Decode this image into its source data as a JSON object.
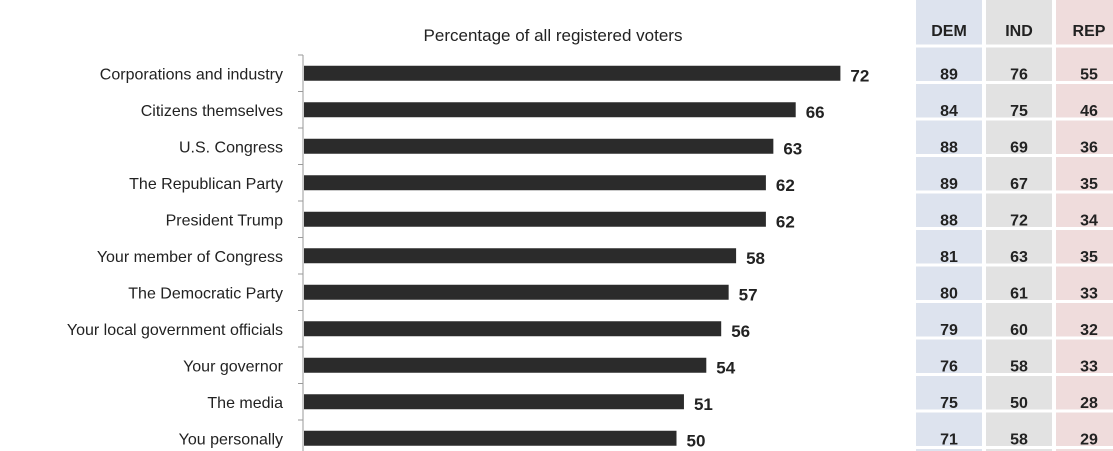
{
  "chart_data": {
    "type": "bar",
    "orientation": "horizontal",
    "title": "Percentage of all registered voters",
    "categories": [
      "Corporations and industry",
      "Citizens themselves",
      "U.S. Congress",
      "The Republican Party",
      "President Trump",
      "Your member of Congress",
      "The Democratic Party",
      "Your local government officials",
      "Your governor",
      "The media",
      "You personally"
    ],
    "values": [
      72,
      66,
      63,
      62,
      62,
      58,
      57,
      56,
      54,
      51,
      50
    ],
    "bar_color": "#2b2b2b",
    "xlim": [
      0,
      100
    ],
    "grid": false,
    "data_labels": true,
    "table": {
      "columns": [
        "DEM",
        "IND",
        "REP"
      ],
      "column_colors": [
        "#dde3ee",
        "#e2e2e2",
        "#efdcdc"
      ],
      "rows": [
        [
          89,
          76,
          55
        ],
        [
          84,
          75,
          46
        ],
        [
          88,
          69,
          36
        ],
        [
          89,
          67,
          35
        ],
        [
          88,
          72,
          34
        ],
        [
          81,
          63,
          35
        ],
        [
          80,
          61,
          33
        ],
        [
          79,
          60,
          32
        ],
        [
          76,
          58,
          33
        ],
        [
          75,
          50,
          28
        ],
        [
          71,
          58,
          29
        ]
      ]
    }
  }
}
